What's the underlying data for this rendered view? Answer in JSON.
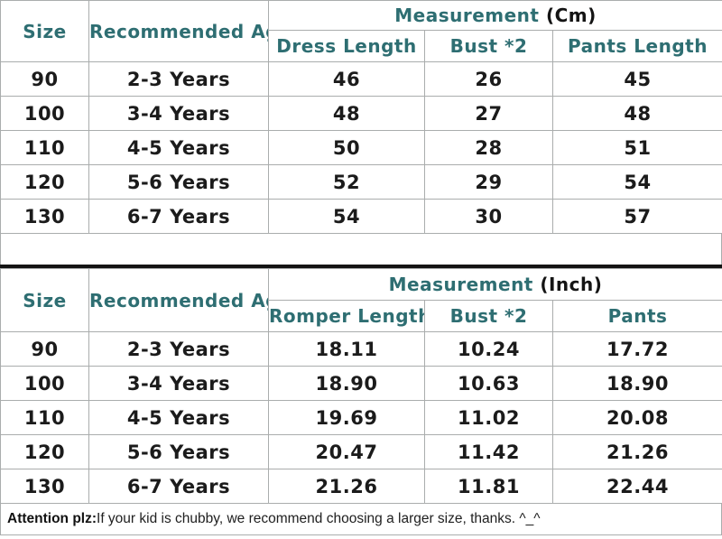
{
  "colors": {
    "header_text": "#2e6e72",
    "body_text": "#1b1b1b",
    "grid_line": "#aaadad",
    "thick_divider": "#141414",
    "background": "#ffffff"
  },
  "table_cm": {
    "header": {
      "size": "Size",
      "age": "Recommended Age",
      "measurement_label": "Measurement",
      "unit_label": "(Cm)",
      "col1": "Dress Length",
      "col2": "Bust *2",
      "col3": "Pants Length"
    },
    "rows": [
      {
        "size": "90",
        "age": "2-3 Years",
        "c1": "46",
        "c2": "26",
        "c3": "45"
      },
      {
        "size": "100",
        "age": "3-4 Years",
        "c1": "48",
        "c2": "27",
        "c3": "48"
      },
      {
        "size": "110",
        "age": "4-5 Years",
        "c1": "50",
        "c2": "28",
        "c3": "51"
      },
      {
        "size": "120",
        "age": "5-6 Years",
        "c1": "52",
        "c2": "29",
        "c3": "54"
      },
      {
        "size": "130",
        "age": "6-7 Years",
        "c1": "54",
        "c2": "30",
        "c3": "57"
      }
    ]
  },
  "table_inch": {
    "header": {
      "size": "Size",
      "age": "Recommended Age",
      "measurement_label": "Measurement",
      "unit_label": "(Inch)",
      "col1": "Romper Length",
      "col2": "Bust *2",
      "col3": "Pants"
    },
    "rows": [
      {
        "size": "90",
        "age": "2-3 Years",
        "c1": "18.11",
        "c2": "10.24",
        "c3": "17.72"
      },
      {
        "size": "100",
        "age": "3-4 Years",
        "c1": "18.90",
        "c2": "10.63",
        "c3": "18.90"
      },
      {
        "size": "110",
        "age": "4-5 Years",
        "c1": "19.69",
        "c2": "11.02",
        "c3": "20.08"
      },
      {
        "size": "120",
        "age": "5-6 Years",
        "c1": "20.47",
        "c2": "11.42",
        "c3": "21.26"
      },
      {
        "size": "130",
        "age": "6-7 Years",
        "c1": "21.26",
        "c2": "11.81",
        "c3": "22.44"
      }
    ]
  },
  "footer": {
    "bold": "Attention plz:",
    "text": " If your kid is chubby, we recommend choosing a larger size, thanks. ^_^"
  }
}
